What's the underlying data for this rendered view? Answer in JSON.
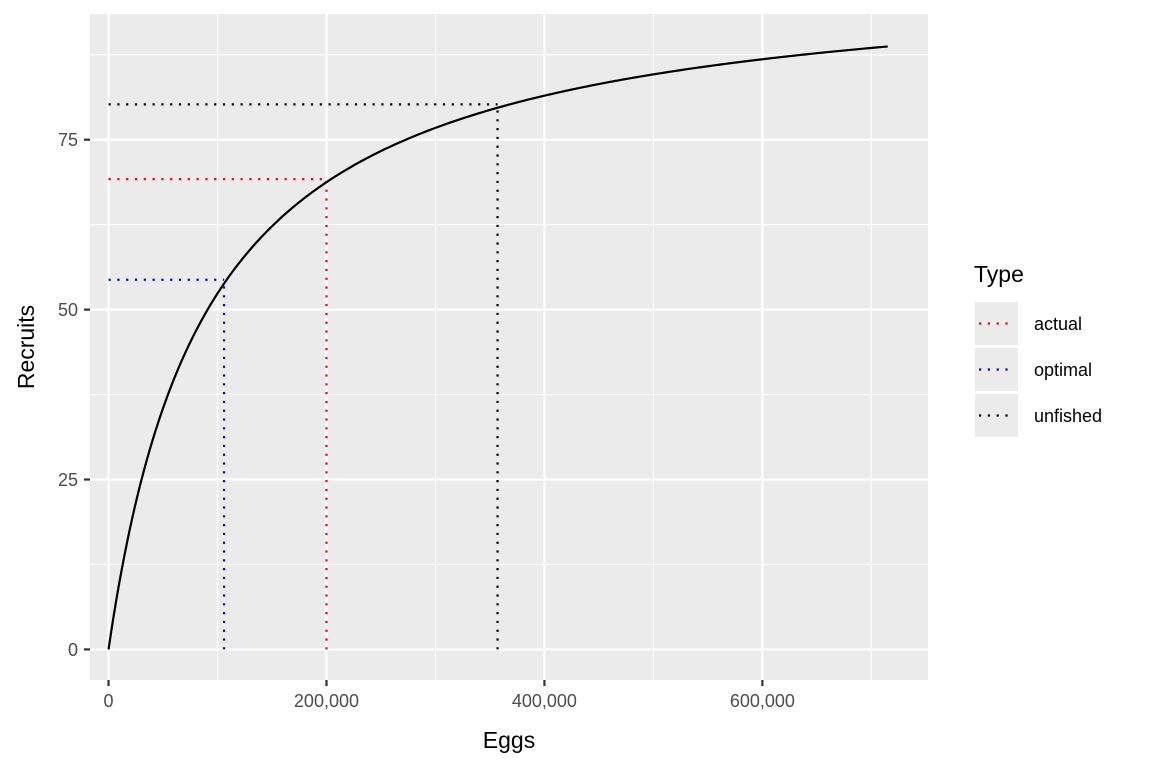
{
  "chart_data": {
    "type": "line",
    "title": "",
    "xlabel": "Eggs",
    "ylabel": "Recruits",
    "xlim": [
      -17000,
      752000
    ],
    "ylim": [
      -4.5,
      93.5
    ],
    "x_ticks": [
      0,
      200000,
      400000,
      600000
    ],
    "x_tick_labels": [
      "0",
      "200,000",
      "400,000",
      "600,000"
    ],
    "y_ticks": [
      0,
      25,
      50,
      75
    ],
    "y_tick_labels": [
      "0",
      "25",
      "50",
      "75"
    ],
    "grid": true,
    "panel_background": "#EBEBEB",
    "curve": {
      "model": "Beverton-Holt",
      "a": 0.0011,
      "Rp": 100,
      "x_max": 715000,
      "color": "#000000"
    },
    "legend": {
      "title": "Type",
      "position": "right",
      "entries": [
        {
          "label": "actual",
          "color": "#FF0000"
        },
        {
          "label": "optimal",
          "color": "#0000FF"
        },
        {
          "label": "unfished",
          "color": "#000000"
        }
      ]
    },
    "reference_lines": [
      {
        "type": "actual",
        "eggs": 200000,
        "recruits": 69.2,
        "color": "#FF0000"
      },
      {
        "type": "optimal",
        "eggs": 106000,
        "recruits": 54.4,
        "color": "#0000FF"
      },
      {
        "type": "unfished",
        "eggs": 357000,
        "recruits": 80.2,
        "color": "#000000"
      }
    ]
  }
}
